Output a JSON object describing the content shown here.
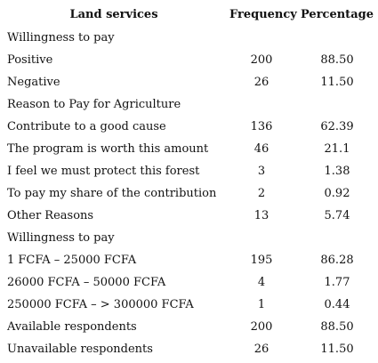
{
  "table": {
    "header": [
      "Land services",
      "Frequency",
      "Percentage"
    ],
    "rows": [
      [
        "Willingness to pay"
      ],
      [
        "Positive",
        "200",
        "88.50"
      ],
      [
        "Negative",
        "26",
        "11.50"
      ],
      [
        "Reason to Pay for Agriculture"
      ],
      [
        "Contribute to a good cause",
        "136",
        "62.39"
      ],
      [
        "The program is worth this amount",
        "46",
        "21.1"
      ],
      [
        "I feel we must protect this forest",
        "3",
        "1.38"
      ],
      [
        "To pay my share of the contribution",
        "2",
        "0.92"
      ],
      [
        "Other Reasons",
        "13",
        "5.74"
      ],
      [
        "Willingness to pay"
      ],
      [
        "1 FCFA – 25000 FCFA",
        "195",
        "86.28"
      ],
      [
        "26000 FCFA – 50000 FCFA",
        "4",
        "1.77"
      ],
      [
        "250000 FCFA – > 300000 FCFA",
        "1",
        "0.44"
      ],
      [
        "Available respondents",
        "200",
        "88.50"
      ],
      [
        "Unavailable respondents",
        "26",
        "11.50"
      ]
    ]
  }
}
